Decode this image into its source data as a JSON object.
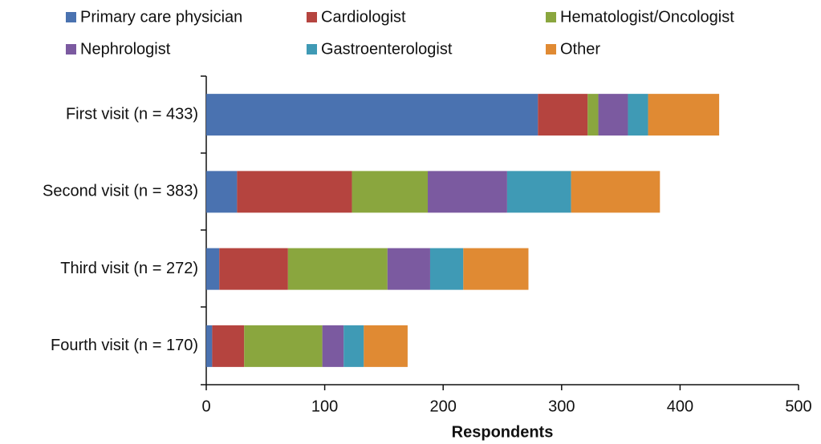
{
  "chart_data": {
    "type": "stacked-barh",
    "categories": [
      "First visit (n = 433)",
      "Second visit (n = 383)",
      "Third visit (n = 272)",
      "Fourth visit (n = 170)"
    ],
    "series": [
      {
        "name": "Primary care physician",
        "color": "#4a72b0",
        "values": [
          280,
          26,
          11,
          5
        ]
      },
      {
        "name": "Cardiologist",
        "color": "#b5443f",
        "values": [
          42,
          97,
          58,
          27
        ]
      },
      {
        "name": "Hematologist/Oncologist",
        "color": "#8aa63e",
        "values": [
          9,
          64,
          84,
          66
        ]
      },
      {
        "name": "Nephrologist",
        "color": "#7b5aa0",
        "values": [
          25,
          67,
          36,
          18
        ]
      },
      {
        "name": "Gastroenterologist",
        "color": "#3f9ab5",
        "values": [
          17,
          54,
          28,
          17
        ]
      },
      {
        "name": "Other",
        "color": "#e08a33",
        "values": [
          60,
          75,
          55,
          37
        ]
      }
    ],
    "xlabel": "Respondents",
    "xlim": [
      0,
      500
    ],
    "xticks": [
      0,
      100,
      200,
      300,
      400,
      500
    ],
    "grid": false,
    "legend": "top"
  }
}
